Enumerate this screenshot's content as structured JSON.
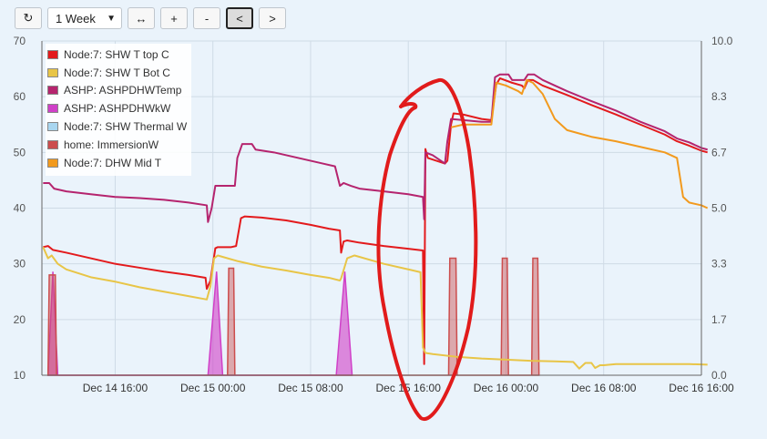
{
  "toolbar": {
    "refresh_icon": "refresh-icon",
    "range_value": "1 Week",
    "expand_icon": "horizontal-arrows-icon",
    "zoom_in_label": "+",
    "zoom_out_label": "-",
    "back_label": "<",
    "forward_label": ">"
  },
  "chart_data": {
    "type": "line",
    "x_unit": "hours since Dec 14 00:00",
    "xlim": [
      10,
      64
    ],
    "x_ticks": [
      {
        "x": 16,
        "label": "Dec 14 16:00"
      },
      {
        "x": 24,
        "label": "Dec 15 00:00"
      },
      {
        "x": 32,
        "label": "Dec 15 08:00"
      },
      {
        "x": 40,
        "label": "Dec 15 16:00"
      },
      {
        "x": 48,
        "label": "Dec 16 00:00"
      },
      {
        "x": 56,
        "label": "Dec 16 08:00"
      },
      {
        "x": 64,
        "label": "Dec 16 16:00"
      }
    ],
    "ylim_left": [
      10,
      70
    ],
    "y_ticks_left": [
      "70",
      "60",
      "50",
      "40",
      "30",
      "20",
      "10"
    ],
    "ylim_right": [
      0,
      10
    ],
    "y_ticks_right": [
      "10.0",
      "8.3",
      "6.7",
      "5.0",
      "3.3",
      "1.7",
      "0.0"
    ],
    "grid": true,
    "legend_position": "top-left",
    "series": [
      {
        "name": "Node:7: SHW T top C",
        "color": "#e31a1c",
        "axis": "left",
        "kind": "line",
        "points": [
          [
            10.1,
            33
          ],
          [
            10.5,
            33.2
          ],
          [
            10.9,
            32.5
          ],
          [
            12,
            32
          ],
          [
            14,
            31
          ],
          [
            16,
            30
          ],
          [
            18,
            29.3
          ],
          [
            20,
            28.6
          ],
          [
            22,
            28
          ],
          [
            23.4,
            27.5
          ],
          [
            23.5,
            25.5
          ],
          [
            23.8,
            27
          ],
          [
            24.2,
            32.8
          ],
          [
            24.4,
            33
          ],
          [
            25.5,
            33
          ],
          [
            25.9,
            33.2
          ],
          [
            26.3,
            38.2
          ],
          [
            26.6,
            38.5
          ],
          [
            28,
            38.3
          ],
          [
            30,
            37.8
          ],
          [
            32,
            37
          ],
          [
            33.5,
            36.3
          ],
          [
            34.4,
            36
          ],
          [
            34.5,
            32
          ],
          [
            34.7,
            34
          ],
          [
            35,
            34.2
          ],
          [
            36,
            33.8
          ],
          [
            38,
            33.2
          ],
          [
            40,
            32.7
          ],
          [
            41.2,
            32.4
          ],
          [
            41.3,
            12
          ],
          [
            41.4,
            50.6
          ],
          [
            41.6,
            49
          ],
          [
            43,
            48
          ],
          [
            43.2,
            48.5
          ],
          [
            43.5,
            55
          ],
          [
            43.7,
            57
          ],
          [
            44.5,
            56.8
          ],
          [
            46,
            56
          ],
          [
            46.8,
            55.8
          ],
          [
            47.2,
            62.2
          ],
          [
            47.5,
            63.3
          ],
          [
            48.5,
            62.5
          ],
          [
            49.3,
            62
          ],
          [
            49.5,
            61.5
          ],
          [
            49.8,
            63
          ],
          [
            50.2,
            63
          ],
          [
            51,
            62
          ],
          [
            53,
            60.3
          ],
          [
            55,
            58.5
          ],
          [
            57,
            56.8
          ],
          [
            59,
            55
          ],
          [
            61,
            53.2
          ],
          [
            62,
            52
          ],
          [
            63,
            51.2
          ],
          [
            64,
            50.3
          ],
          [
            64.5,
            50
          ]
        ]
      },
      {
        "name": "Node:7: SHW T Bot C",
        "color": "#e8c547",
        "axis": "left",
        "kind": "line",
        "points": [
          [
            10.1,
            33
          ],
          [
            10.5,
            31
          ],
          [
            10.8,
            31.5
          ],
          [
            11.3,
            30
          ],
          [
            12,
            29
          ],
          [
            14,
            27.6
          ],
          [
            16,
            26.8
          ],
          [
            18,
            25.8
          ],
          [
            20,
            25
          ],
          [
            22,
            24.2
          ],
          [
            23.5,
            23.6
          ],
          [
            23.8,
            26
          ],
          [
            24.1,
            31
          ],
          [
            24.4,
            31.5
          ],
          [
            26,
            30.5
          ],
          [
            28,
            29.5
          ],
          [
            30,
            28.8
          ],
          [
            32,
            28
          ],
          [
            33.5,
            27.5
          ],
          [
            34.4,
            27
          ],
          [
            34.5,
            27.4
          ],
          [
            35,
            31
          ],
          [
            35.6,
            31.5
          ],
          [
            38,
            30
          ],
          [
            40,
            29
          ],
          [
            41,
            28.5
          ],
          [
            41.2,
            15
          ],
          [
            41.4,
            14
          ],
          [
            42,
            13.8
          ],
          [
            44,
            13.3
          ],
          [
            46,
            13
          ],
          [
            48,
            12.8
          ],
          [
            50,
            12.6
          ],
          [
            52,
            12.5
          ],
          [
            53.5,
            12.4
          ],
          [
            54,
            11.2
          ],
          [
            54.5,
            12.2
          ],
          [
            55,
            12.2
          ],
          [
            55.3,
            11.3
          ],
          [
            55.7,
            11.8
          ],
          [
            56,
            11.8
          ],
          [
            57,
            12
          ],
          [
            59,
            12
          ],
          [
            61,
            12
          ],
          [
            63,
            12
          ],
          [
            64.5,
            11.9
          ]
        ]
      },
      {
        "name": "ASHP: ASHPDHWTemp",
        "color": "#b5246e",
        "axis": "left",
        "kind": "line",
        "points": [
          [
            10.1,
            44.5
          ],
          [
            10.6,
            44.5
          ],
          [
            11,
            43.5
          ],
          [
            12,
            43
          ],
          [
            14,
            42.5
          ],
          [
            16,
            42
          ],
          [
            18,
            41.8
          ],
          [
            20,
            41.5
          ],
          [
            22,
            41
          ],
          [
            23.5,
            40.5
          ],
          [
            23.6,
            37.5
          ],
          [
            23.9,
            40
          ],
          [
            24.2,
            44
          ],
          [
            25,
            44
          ],
          [
            25.8,
            44
          ],
          [
            26,
            49
          ],
          [
            26.4,
            51.5
          ],
          [
            27.2,
            51.5
          ],
          [
            27.5,
            50.5
          ],
          [
            29,
            50
          ],
          [
            31,
            49
          ],
          [
            33,
            48
          ],
          [
            34,
            47.5
          ],
          [
            34.4,
            44
          ],
          [
            34.7,
            44.5
          ],
          [
            35.3,
            44
          ],
          [
            36,
            43.5
          ],
          [
            38,
            43
          ],
          [
            40,
            42.5
          ],
          [
            41.2,
            42
          ],
          [
            41.3,
            38
          ],
          [
            41.4,
            50
          ],
          [
            42,
            49.5
          ],
          [
            43,
            48
          ],
          [
            43.2,
            52
          ],
          [
            43.5,
            56
          ],
          [
            44.5,
            55.8
          ],
          [
            46,
            55.5
          ],
          [
            46.8,
            55.5
          ],
          [
            47.1,
            63.5
          ],
          [
            47.5,
            64
          ],
          [
            48.2,
            64
          ],
          [
            48.5,
            63
          ],
          [
            49.5,
            63
          ],
          [
            49.8,
            64
          ],
          [
            50.3,
            64
          ],
          [
            51,
            63
          ],
          [
            53,
            61
          ],
          [
            55,
            59.2
          ],
          [
            57,
            57.5
          ],
          [
            59,
            55.5
          ],
          [
            61,
            53.8
          ],
          [
            62,
            52.5
          ],
          [
            63,
            51.8
          ],
          [
            64,
            50.8
          ],
          [
            64.5,
            50.5
          ]
        ]
      },
      {
        "name": "ASHP: ASHPDHWkW",
        "color": "#d040c8",
        "axis": "right",
        "kind": "area",
        "opacity": 0.6,
        "points": [
          [
            10.5,
            0
          ],
          [
            10.9,
            3.1
          ],
          [
            11.3,
            0
          ],
          [
            23.6,
            0
          ],
          [
            24.3,
            3.1
          ],
          [
            24.8,
            0
          ],
          [
            34.1,
            0
          ],
          [
            34.8,
            3.1
          ],
          [
            35.4,
            0
          ]
        ]
      },
      {
        "name": "Node:7: SHW Thermal W",
        "color": "#a9d6f0",
        "axis": "right",
        "kind": "line",
        "points": []
      },
      {
        "name": "home: ImmersionW",
        "color": "#cc4d4d",
        "axis": "right",
        "kind": "area",
        "opacity": 0.45,
        "points": [
          [
            10.5,
            0
          ],
          [
            10.6,
            3.0
          ],
          [
            11.1,
            3.0
          ],
          [
            11.2,
            0
          ],
          [
            25.2,
            0
          ],
          [
            25.3,
            3.2
          ],
          [
            25.7,
            3.2
          ],
          [
            25.8,
            0
          ],
          [
            43.3,
            0
          ],
          [
            43.4,
            3.5
          ],
          [
            43.9,
            3.5
          ],
          [
            44,
            0
          ],
          [
            47.6,
            0
          ],
          [
            47.7,
            3.5
          ],
          [
            48.1,
            3.5
          ],
          [
            48.2,
            0
          ],
          [
            50.1,
            0
          ],
          [
            50.2,
            3.5
          ],
          [
            50.6,
            3.5
          ],
          [
            50.7,
            0
          ]
        ]
      },
      {
        "name": "Node:7: DHW Mid T",
        "color": "#f29a1e",
        "axis": "left",
        "kind": "line",
        "points": [
          [
            43.5,
            54.5
          ],
          [
            44.5,
            55
          ],
          [
            46,
            55
          ],
          [
            46.8,
            55
          ],
          [
            47.2,
            62.5
          ],
          [
            48,
            62
          ],
          [
            49,
            61
          ],
          [
            49.3,
            60.5
          ],
          [
            49.7,
            63
          ],
          [
            50.2,
            62.5
          ],
          [
            51,
            60.5
          ],
          [
            52,
            56
          ],
          [
            53,
            54
          ],
          [
            55,
            52.8
          ],
          [
            57,
            52
          ],
          [
            59,
            51
          ],
          [
            61,
            50
          ],
          [
            62,
            49
          ],
          [
            62.5,
            42
          ],
          [
            63,
            41
          ],
          [
            64,
            40.5
          ],
          [
            64.5,
            40
          ]
        ]
      }
    ]
  }
}
